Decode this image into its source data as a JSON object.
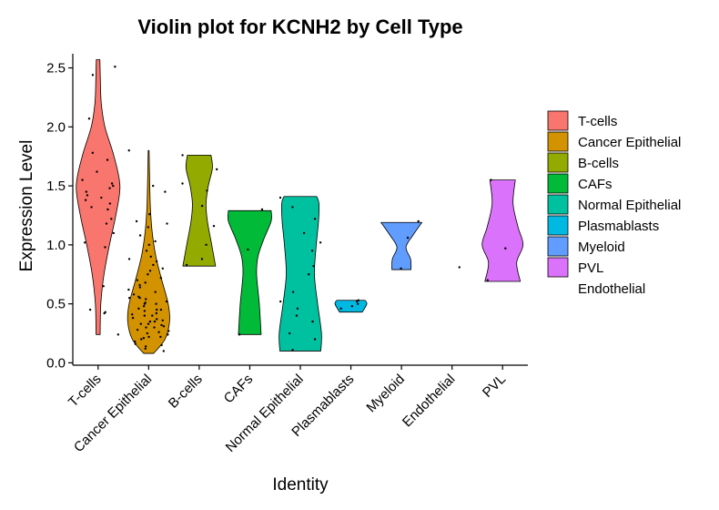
{
  "chart_data": {
    "type": "violin",
    "title": "Violin plot for KCNH2 by Cell Type",
    "xlabel": "Identity",
    "ylabel": "Expression Level",
    "ylim": [
      -0.02,
      2.62
    ],
    "yticks": [
      0.0,
      0.5,
      1.0,
      1.5,
      2.0,
      2.5
    ],
    "ytick_labels": [
      "0.0",
      "0.5",
      "1.0",
      "1.5",
      "2.0",
      "2.5"
    ],
    "grid": false,
    "legend_position": "right",
    "categories": [
      "T-cells",
      "Cancer Epithelial",
      "B-cells",
      "CAFs",
      "Normal Epithelial",
      "Plasmablasts",
      "Myeloid",
      "Endothelial",
      "PVL"
    ],
    "colors": [
      "#F8766D",
      "#D39200",
      "#93AA00",
      "#00BA38",
      "#00C19F",
      "#00B9E3",
      "#619CFF",
      "#DB72FB",
      "#DB72FB"
    ],
    "legend": [
      {
        "label": "T-cells",
        "color": "#F8766D"
      },
      {
        "label": "Cancer Epithelial",
        "color": "#D39200"
      },
      {
        "label": "B-cells",
        "color": "#93AA00"
      },
      {
        "label": "CAFs",
        "color": "#00BA38"
      },
      {
        "label": "Normal Epithelial",
        "color": "#00C19F"
      },
      {
        "label": "Plasmablasts",
        "color": "#00B9E3"
      },
      {
        "label": "Myeloid",
        "color": "#619CFF"
      },
      {
        "label": "PVL",
        "color": "#DB72FB"
      },
      {
        "label": "Endothelial",
        "color": ""
      }
    ],
    "violins": [
      {
        "category": "T-cells",
        "profile": [
          [
            0.24,
            0.09
          ],
          [
            0.5,
            0.12
          ],
          [
            0.75,
            0.26
          ],
          [
            1.0,
            0.5
          ],
          [
            1.25,
            0.78
          ],
          [
            1.5,
            0.96
          ],
          [
            1.75,
            0.7
          ],
          [
            2.0,
            0.3
          ],
          [
            2.2,
            0.14
          ],
          [
            2.4,
            0.1
          ],
          [
            2.57,
            0.08
          ]
        ]
      },
      {
        "category": "Cancer Epithelial",
        "profile": [
          [
            0.08,
            0.22
          ],
          [
            0.2,
            0.72
          ],
          [
            0.35,
            0.92
          ],
          [
            0.5,
            0.86
          ],
          [
            0.7,
            0.58
          ],
          [
            0.9,
            0.32
          ],
          [
            1.1,
            0.16
          ],
          [
            1.3,
            0.08
          ],
          [
            1.5,
            0.05
          ],
          [
            1.8,
            0.02
          ]
        ]
      },
      {
        "category": "B-cells",
        "profile": [
          [
            0.82,
            0.72
          ],
          [
            1.0,
            0.55
          ],
          [
            1.2,
            0.36
          ],
          [
            1.35,
            0.3
          ],
          [
            1.5,
            0.4
          ],
          [
            1.65,
            0.58
          ],
          [
            1.76,
            0.52
          ]
        ]
      },
      {
        "category": "CAFs",
        "profile": [
          [
            0.24,
            0.5
          ],
          [
            0.5,
            0.42
          ],
          [
            0.75,
            0.3
          ],
          [
            0.9,
            0.36
          ],
          [
            1.05,
            0.62
          ],
          [
            1.2,
            0.94
          ],
          [
            1.29,
            0.94
          ]
        ]
      },
      {
        "category": "Normal Epithelial",
        "profile": [
          [
            0.1,
            0.9
          ],
          [
            0.25,
            0.93
          ],
          [
            0.5,
            0.76
          ],
          [
            0.75,
            0.62
          ],
          [
            1.0,
            0.7
          ],
          [
            1.2,
            0.8
          ],
          [
            1.35,
            0.82
          ],
          [
            1.41,
            0.72
          ]
        ]
      },
      {
        "category": "Plasmablasts",
        "profile": [
          [
            0.43,
            0.5
          ],
          [
            0.5,
            0.7
          ],
          [
            0.53,
            0.62
          ]
        ]
      },
      {
        "category": "Myeloid",
        "profile": [
          [
            0.79,
            0.42
          ],
          [
            0.88,
            0.4
          ],
          [
            0.98,
            0.2
          ],
          [
            1.08,
            0.5
          ],
          [
            1.19,
            0.9
          ]
        ]
      },
      {
        "category": "PVL",
        "profile": [
          [
            0.69,
            0.78
          ],
          [
            0.85,
            0.62
          ],
          [
            1.0,
            0.9
          ],
          [
            1.15,
            0.68
          ],
          [
            1.35,
            0.46
          ],
          [
            1.55,
            0.56
          ]
        ]
      }
    ],
    "points": [
      {
        "category": "T-cells",
        "y": [
          0.42,
          0.45,
          0.65,
          0.24,
          0.43,
          0.98,
          1.02,
          1.1,
          1.18,
          1.22,
          1.3,
          1.32,
          1.35,
          1.38,
          1.4,
          1.42,
          1.45,
          1.48,
          1.5,
          1.52,
          1.55,
          1.62,
          1.72,
          1.78,
          2.07,
          2.44,
          2.51
        ]
      },
      {
        "category": "Cancer Epithelial",
        "y": [
          0.1,
          0.12,
          0.14,
          0.15,
          0.16,
          0.18,
          0.2,
          0.21,
          0.22,
          0.24,
          0.25,
          0.26,
          0.28,
          0.3,
          0.31,
          0.32,
          0.33,
          0.35,
          0.36,
          0.37,
          0.38,
          0.4,
          0.41,
          0.42,
          0.44,
          0.45,
          0.46,
          0.48,
          0.5,
          0.51,
          0.52,
          0.54,
          0.55,
          0.56,
          0.58,
          0.6,
          0.62,
          0.64,
          0.66,
          0.68,
          0.7,
          0.72,
          0.75,
          0.78,
          0.8,
          0.83,
          0.86,
          0.88,
          0.9,
          0.95,
          1.0,
          1.03,
          1.08,
          1.15,
          1.18,
          1.2,
          1.26,
          1.45,
          1.5,
          1.8,
          0.3,
          0.35,
          0.4,
          0.45,
          0.5,
          0.55,
          0.22,
          0.27,
          0.33
        ]
      },
      {
        "category": "B-cells",
        "y": [
          0.83,
          0.88,
          1.0,
          1.16,
          1.33,
          1.46,
          1.52,
          1.64,
          1.76
        ]
      },
      {
        "category": "CAFs",
        "y": [
          0.24,
          0.96,
          1.3
        ]
      },
      {
        "category": "Normal Epithelial",
        "y": [
          0.11,
          0.2,
          0.25,
          0.35,
          0.4,
          0.46,
          0.52,
          0.6,
          0.75,
          0.82,
          0.95,
          1.02,
          1.1,
          1.22,
          1.32,
          1.4
        ]
      },
      {
        "category": "Plasmablasts",
        "y": [
          0.46,
          0.48,
          0.52,
          0.53,
          0.5
        ]
      },
      {
        "category": "Myeloid",
        "y": [
          0.8,
          1.06,
          1.2
        ]
      },
      {
        "category": "Endothelial",
        "y": [
          0.81
        ]
      },
      {
        "category": "PVL",
        "y": [
          0.7,
          0.97,
          1.55
        ]
      }
    ]
  }
}
